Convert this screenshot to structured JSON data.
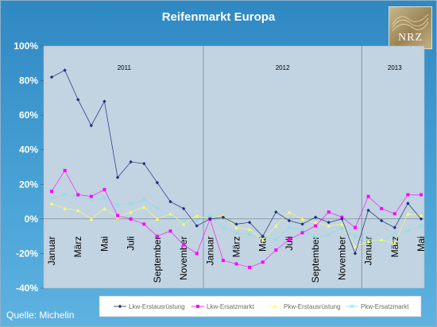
{
  "title": "Reifenmarkt Europa",
  "source": "Quelle: Michelin",
  "logo_text": "NRZ",
  "chart_data": {
    "type": "line",
    "title": "Reifenmarkt Europa",
    "ylim": [
      -40,
      100
    ],
    "yticks": [
      "100%",
      "80%",
      "60%",
      "40%",
      "20%",
      "0%",
      "-20%",
      "-40%"
    ],
    "ytick_values": [
      100,
      80,
      60,
      40,
      20,
      0,
      -20,
      -40
    ],
    "x_tick_labels": [
      "Januar",
      "März",
      "Mai",
      "Juli",
      "September",
      "November",
      "Januar",
      "März",
      "Mai",
      "Juli",
      "September",
      "November",
      "Januar",
      "März",
      "Mai"
    ],
    "x_tick_indices": [
      0,
      2,
      4,
      6,
      8,
      10,
      12,
      14,
      16,
      18,
      20,
      22,
      24,
      26,
      28
    ],
    "year_groups": [
      {
        "label": "2011",
        "start": 0,
        "end": 11
      },
      {
        "label": "2012",
        "start": 12,
        "end": 23
      },
      {
        "label": "2013",
        "start": 24,
        "end": 28
      }
    ],
    "grid": false,
    "legend_position": "bottom",
    "series": [
      {
        "name": "Lkw-Erstausrüstung",
        "color": "#1f2f7a",
        "marker": "diamond",
        "values": [
          82,
          86,
          69,
          54,
          68,
          24,
          33,
          32,
          21,
          10,
          6,
          -4,
          0,
          1,
          -3,
          -2,
          -10,
          4,
          -1,
          -3,
          1,
          -2,
          0,
          -20,
          5,
          -1,
          -5,
          9,
          0
        ]
      },
      {
        "name": "Lkw-Ersatzmarkt",
        "color": "#ff00ff",
        "marker": "square",
        "values": [
          16,
          28,
          14,
          13,
          17,
          2,
          0,
          -3,
          -10,
          -7,
          -15,
          -20,
          0,
          -24,
          -26,
          -28,
          -25,
          -18,
          -12,
          -8,
          -4,
          4,
          1,
          -5,
          13,
          6,
          3,
          14,
          14
        ]
      },
      {
        "name": "Pkw-Erstausrüstung",
        "color": "#ffff66",
        "marker": "triangle",
        "values": [
          9,
          6,
          5,
          0,
          6,
          1,
          4,
          7,
          0,
          3,
          -3,
          2,
          0,
          2,
          -5,
          -6,
          -12,
          -4,
          4,
          0,
          -2,
          -4,
          -3,
          -16,
          -13,
          -12,
          -14,
          3,
          2
        ]
      },
      {
        "name": "Pkw-Ersatzmarkt",
        "color": "#7fe3e6",
        "marker": "x",
        "values": [
          12,
          14,
          13,
          11,
          12,
          8,
          9,
          11,
          6,
          2,
          -2,
          -1,
          2,
          -5,
          -8,
          -9,
          -10,
          -12,
          -5,
          -6,
          -11,
          -9,
          -5,
          -10,
          -12,
          -13,
          -8,
          -7,
          -4
        ]
      }
    ]
  }
}
